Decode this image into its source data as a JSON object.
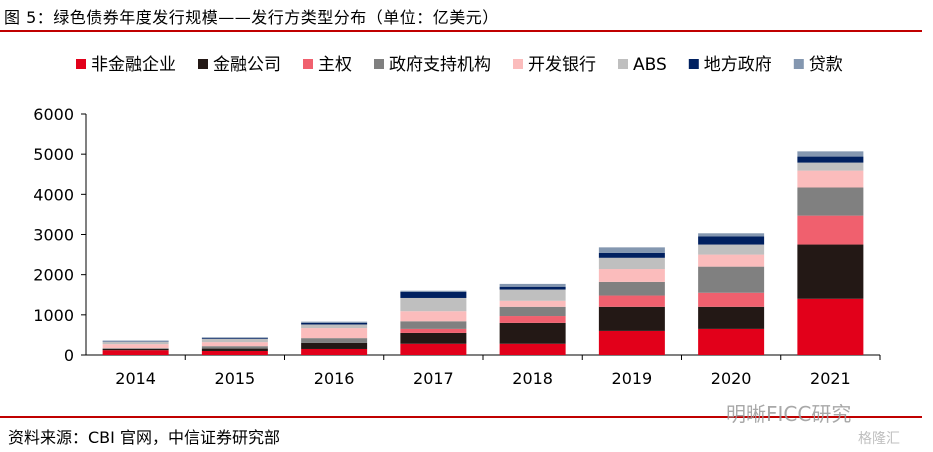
{
  "header": {
    "title": "图 5：绿色债券年度发行规模——发行方类型分布（单位：亿美元）"
  },
  "footer": {
    "source": "资料来源：CBI 官网，中信证券研究部"
  },
  "watermark": {
    "text": "明晰FICC研究",
    "text2": "格隆汇"
  },
  "chart_data": {
    "type": "bar",
    "stacked": true,
    "title": "图 5：绿色债券年度发行规模——发行方类型分布（单位：亿美元）",
    "xlabel": "",
    "ylabel": "",
    "ylim": [
      0,
      6000
    ],
    "yticks": [
      0,
      1000,
      2000,
      3000,
      4000,
      5000,
      6000
    ],
    "grid": false,
    "legend_position": "top",
    "categories": [
      "2014",
      "2015",
      "2016",
      "2017",
      "2018",
      "2019",
      "2020",
      "2021"
    ],
    "series": [
      {
        "name": "非金融企业",
        "color": "#e2001a",
        "values": [
          120,
          100,
          150,
          280,
          280,
          600,
          650,
          1400
        ]
      },
      {
        "name": "金融公司",
        "color": "#231815",
        "values": [
          30,
          60,
          150,
          270,
          520,
          600,
          550,
          1350
        ]
      },
      {
        "name": "主权",
        "color": "#f0606e",
        "values": [
          0,
          0,
          0,
          100,
          170,
          280,
          350,
          720
        ]
      },
      {
        "name": "政府支持机构",
        "color": "#808080",
        "values": [
          20,
          60,
          120,
          190,
          230,
          340,
          650,
          700
        ]
      },
      {
        "name": "开发银行",
        "color": "#fbbcbc",
        "values": [
          100,
          100,
          250,
          250,
          150,
          320,
          300,
          420
        ]
      },
      {
        "name": "ABS",
        "color": "#bfbfbf",
        "values": [
          60,
          80,
          90,
          330,
          280,
          280,
          250,
          200
        ]
      },
      {
        "name": "地方政府",
        "color": "#002060",
        "values": [
          10,
          20,
          40,
          150,
          70,
          120,
          200,
          150
        ]
      },
      {
        "name": "贷款",
        "color": "#8497b0",
        "values": [
          20,
          20,
          30,
          30,
          70,
          140,
          80,
          130
        ]
      }
    ]
  }
}
